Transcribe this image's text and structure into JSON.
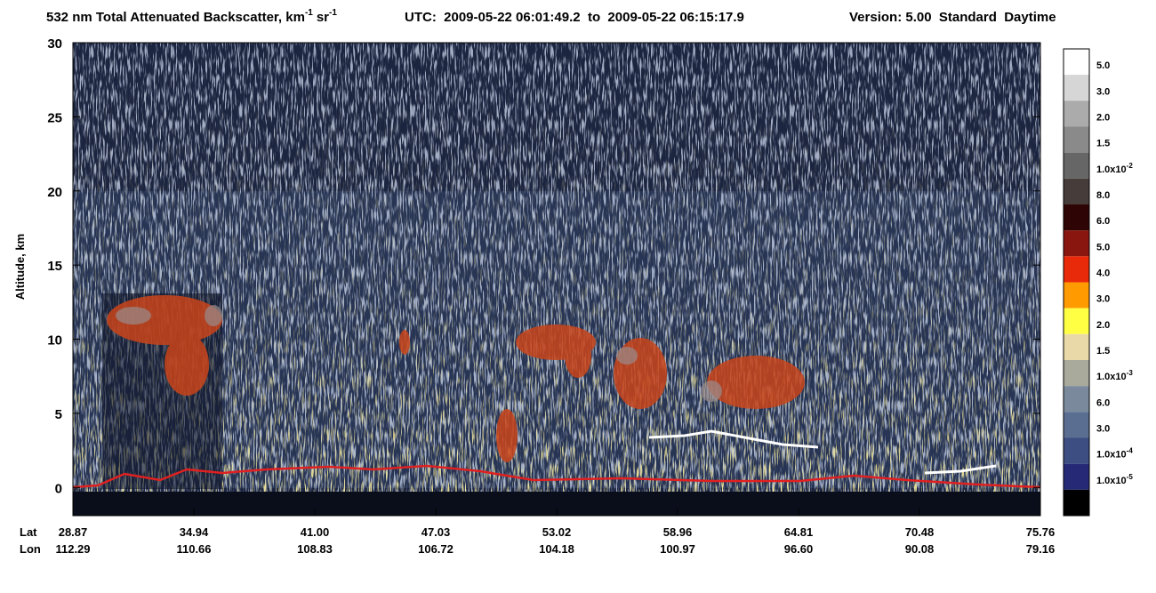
{
  "chart_data": {
    "type": "curtain",
    "title": {
      "main": "532 nm Total Attenuated Backscatter, km",
      "unit_exp": "-1",
      "unit2": "sr",
      "unit2_exp": "-1",
      "time": "UTC:  2009-05-22 06:01:49.2  to  2009-05-22 06:15:17.9",
      "version": "Version: 5.00  Standard  Daytime"
    },
    "y_label": "Altitude, km",
    "ylim": [
      -1.9,
      30
    ],
    "yticks": [
      0,
      5,
      10,
      15,
      20,
      25,
      30
    ],
    "x_rows": [
      "Lat",
      "Lon"
    ],
    "lat": [
      "28.87",
      "34.94",
      "41.00",
      "47.03",
      "53.02",
      "58.96",
      "64.81",
      "70.48",
      "75.76"
    ],
    "lon": [
      "112.29",
      "110.66",
      "108.83",
      "106.72",
      "104.18",
      "100.97",
      "96.60",
      "90.08",
      "79.16"
    ],
    "colorbar": {
      "colors": [
        "#ffffff",
        "#d6d6d6",
        "#ababab",
        "#8a8a8a",
        "#666666",
        "#463c3a",
        "#2e0404",
        "#8a1610",
        "#e82a0a",
        "#ff9a00",
        "#ffff44",
        "#e9d9a9",
        "#a9a99c",
        "#7a8a9c",
        "#5a6e92",
        "#3c4e82",
        "#262a76",
        "#000000"
      ],
      "labels": [
        {
          "text": "5.0"
        },
        {
          "text": "3.0"
        },
        {
          "text": "2.0"
        },
        {
          "text": "1.5"
        },
        {
          "text": "1.0x10",
          "exp": "-2"
        },
        {
          "text": "8.0"
        },
        {
          "text": "6.0"
        },
        {
          "text": "5.0"
        },
        {
          "text": "4.0"
        },
        {
          "text": "3.0"
        },
        {
          "text": "2.0"
        },
        {
          "text": "1.5"
        },
        {
          "text": "1.0x10",
          "exp": "-3"
        },
        {
          "text": "6.0"
        },
        {
          "text": "3.0"
        },
        {
          "text": "1.0x10",
          "exp": "-4"
        },
        {
          "text": "1.0x10",
          "exp": "-5"
        }
      ]
    }
  }
}
